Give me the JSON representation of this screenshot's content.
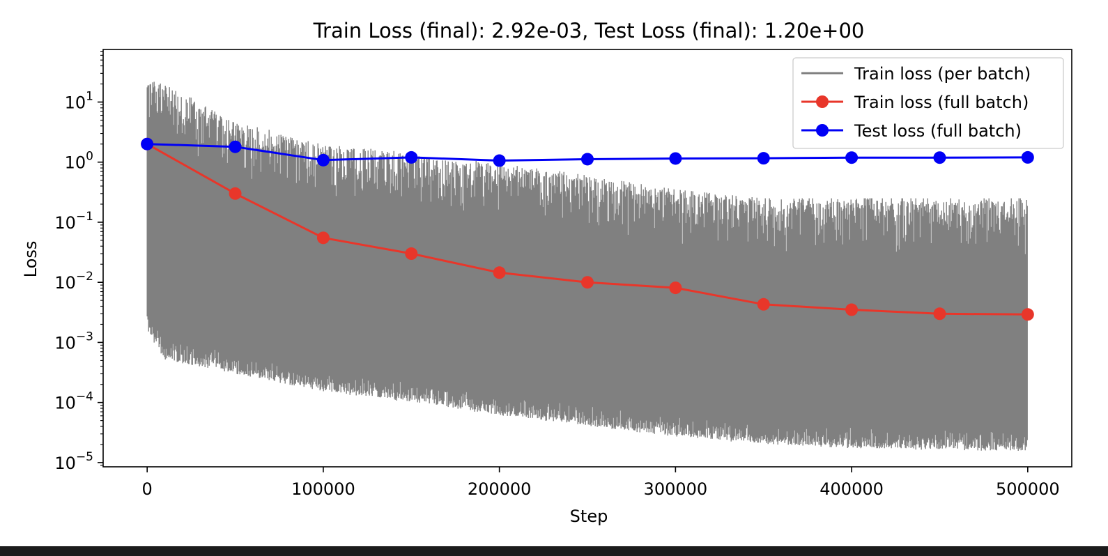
{
  "chart_data": {
    "type": "line",
    "title": "Train Loss (final): 2.92e-03, Test Loss (final): 1.20e+00",
    "xlabel": "Step",
    "ylabel": "Loss",
    "xlim": [
      -25000,
      525000
    ],
    "ylim": [
      8.5e-06,
      75
    ],
    "yscale": "log",
    "grid": false,
    "legend_position": "top-right",
    "x_ticks": [
      {
        "value": 0,
        "label": "0"
      },
      {
        "value": 100000,
        "label": "100000"
      },
      {
        "value": 200000,
        "label": "200000"
      },
      {
        "value": 300000,
        "label": "300000"
      },
      {
        "value": 400000,
        "label": "400000"
      },
      {
        "value": 500000,
        "label": "500000"
      }
    ],
    "y_ticks": [
      {
        "value": 10,
        "base": "10",
        "exp": "1"
      },
      {
        "value": 1,
        "base": "10",
        "exp": "0"
      },
      {
        "value": 0.1,
        "base": "10",
        "exp": "−1"
      },
      {
        "value": 0.01,
        "base": "10",
        "exp": "−2"
      },
      {
        "value": 0.001,
        "base": "10",
        "exp": "−3"
      },
      {
        "value": 0.0001,
        "base": "10",
        "exp": "−4"
      },
      {
        "value": 1e-05,
        "base": "10",
        "exp": "−5"
      }
    ],
    "series": [
      {
        "name": "Train loss (per batch)",
        "color": "#808080",
        "marker": "none",
        "style": "dense-noisy-band",
        "x_start": 0,
        "x_end": 500000,
        "upper_envelope": [
          [
            0,
            30
          ],
          [
            50000,
            5
          ],
          [
            100000,
            2
          ],
          [
            150000,
            1.5
          ],
          [
            200000,
            1
          ],
          [
            250000,
            0.6
          ],
          [
            300000,
            0.35
          ],
          [
            350000,
            0.25
          ],
          [
            400000,
            0.25
          ],
          [
            450000,
            0.25
          ],
          [
            500000,
            0.25
          ]
        ],
        "lower_envelope": [
          [
            0,
            0.0015
          ],
          [
            10000,
            0.0005
          ],
          [
            50000,
            0.0003
          ],
          [
            100000,
            0.00015
          ],
          [
            150000,
            0.0001
          ],
          [
            200000,
            6e-05
          ],
          [
            250000,
            4e-05
          ],
          [
            300000,
            2.7e-05
          ],
          [
            350000,
            2e-05
          ],
          [
            400000,
            1.7e-05
          ],
          [
            450000,
            1.6e-05
          ],
          [
            500000,
            1.5e-05
          ]
        ]
      },
      {
        "name": "Train loss (full batch)",
        "color": "#e8362a",
        "marker": "circle",
        "x": [
          0,
          50000,
          100000,
          150000,
          200000,
          250000,
          300000,
          350000,
          400000,
          450000,
          500000
        ],
        "values": [
          2.0,
          0.3,
          0.055,
          0.03,
          0.0145,
          0.01,
          0.0081,
          0.0043,
          0.0035,
          0.003,
          0.00292
        ]
      },
      {
        "name": "Test loss (full batch)",
        "color": "#0000f5",
        "marker": "circle",
        "x": [
          0,
          50000,
          100000,
          150000,
          200000,
          250000,
          300000,
          350000,
          400000,
          450000,
          500000
        ],
        "values": [
          2.0,
          1.8,
          1.08,
          1.2,
          1.06,
          1.12,
          1.15,
          1.16,
          1.19,
          1.19,
          1.2
        ]
      }
    ]
  }
}
